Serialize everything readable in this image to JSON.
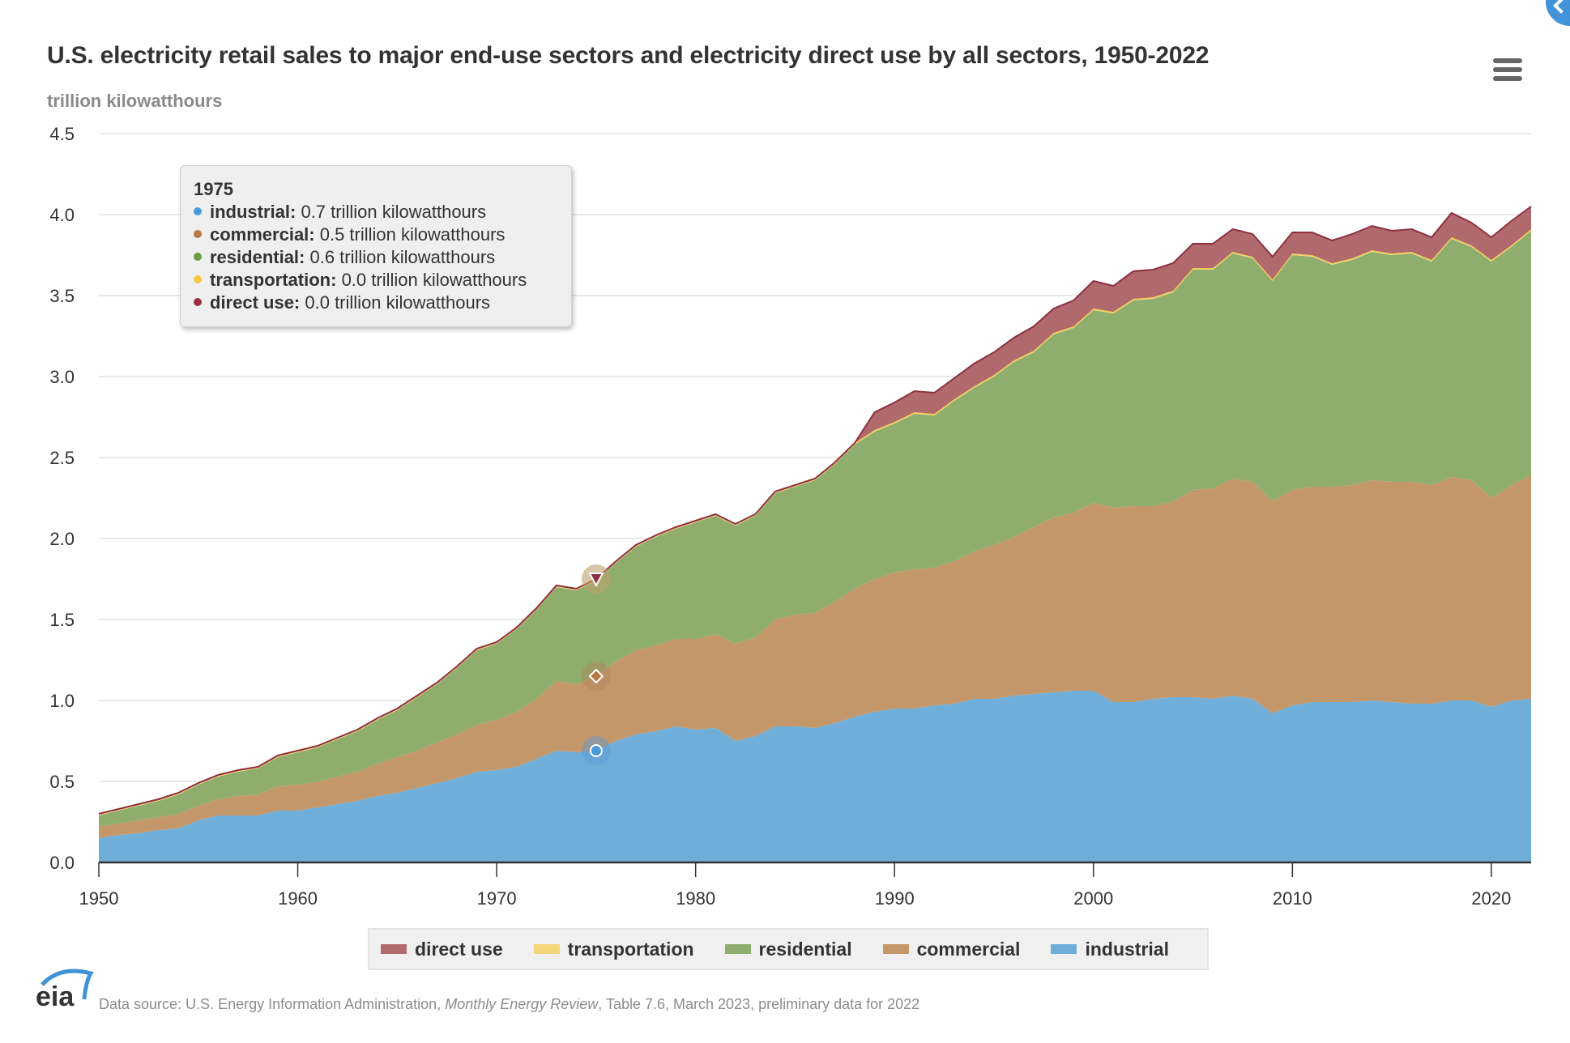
{
  "header": {
    "title": "U.S. electricity retail sales to major end-use sectors and electricity direct use by all sectors, 1950-2022",
    "subtitle": "trillion kilowatthours",
    "menu_icon": "hamburger-menu-icon",
    "corner_icon": "chevron-left-icon"
  },
  "tooltip": {
    "year": "1975",
    "rows": [
      {
        "label": "industrial:",
        "value": "0.7 trillion kilowatthours",
        "color": "#4a9ad9"
      },
      {
        "label": "commercial:",
        "value": "0.5 trillion kilowatthours",
        "color": "#b87a44"
      },
      {
        "label": "residential:",
        "value": "0.6 trillion kilowatthours",
        "color": "#6a9a44"
      },
      {
        "label": "transportation:",
        "value": "0.0 trillion kilowatthours",
        "color": "#f4c842"
      },
      {
        "label": "direct use:",
        "value": "0.0 trillion kilowatthours",
        "color": "#9b3040"
      }
    ]
  },
  "legend": [
    {
      "label": "direct use",
      "color": "#b06a6e"
    },
    {
      "label": "transportation",
      "color": "#f5d67a"
    },
    {
      "label": "residential",
      "color": "#8fae6e"
    },
    {
      "label": "commercial",
      "color": "#c4976a"
    },
    {
      "label": "industrial",
      "color": "#6faed9"
    }
  ],
  "footer": {
    "logo_text": "eia",
    "source_prefix": "Data source: U.S. Energy Information Administration, ",
    "source_italic": "Monthly Energy Review",
    "source_suffix": ", Table 7.6, March 2023, preliminary data for 2022"
  },
  "chart_data": {
    "type": "area",
    "stacked": true,
    "title": "U.S. electricity retail sales to major end-use sectors and electricity direct use by all sectors, 1950-2022",
    "ylabel": "trillion kilowatthours",
    "xlabel": "",
    "ylim": [
      0,
      4.5
    ],
    "yticks": [
      "0.0",
      "0.5",
      "1.0",
      "1.5",
      "2.0",
      "2.5",
      "3.0",
      "3.5",
      "4.0",
      "4.5"
    ],
    "xlim": [
      1950,
      2022
    ],
    "xticks": [
      "1950",
      "1960",
      "1970",
      "1980",
      "1990",
      "2000",
      "2010",
      "2020"
    ],
    "grid": true,
    "legend_position": "bottom-center",
    "highlighted_x": 1975,
    "x": [
      1950,
      1951,
      1952,
      1953,
      1954,
      1955,
      1956,
      1957,
      1958,
      1959,
      1960,
      1961,
      1962,
      1963,
      1964,
      1965,
      1966,
      1967,
      1968,
      1969,
      1970,
      1971,
      1972,
      1973,
      1974,
      1975,
      1976,
      1977,
      1978,
      1979,
      1980,
      1981,
      1982,
      1983,
      1984,
      1985,
      1986,
      1987,
      1988,
      1989,
      1990,
      1991,
      1992,
      1993,
      1994,
      1995,
      1996,
      1997,
      1998,
      1999,
      2000,
      2001,
      2002,
      2003,
      2004,
      2005,
      2006,
      2007,
      2008,
      2009,
      2010,
      2011,
      2012,
      2013,
      2014,
      2015,
      2016,
      2017,
      2018,
      2019,
      2020,
      2021,
      2022
    ],
    "series": [
      {
        "name": "industrial",
        "color": "#6faed9",
        "values": [
          0.15,
          0.17,
          0.18,
          0.2,
          0.21,
          0.26,
          0.29,
          0.29,
          0.29,
          0.32,
          0.32,
          0.34,
          0.36,
          0.38,
          0.41,
          0.43,
          0.46,
          0.49,
          0.52,
          0.56,
          0.57,
          0.59,
          0.64,
          0.69,
          0.68,
          0.69,
          0.75,
          0.79,
          0.81,
          0.84,
          0.82,
          0.83,
          0.75,
          0.78,
          0.84,
          0.84,
          0.83,
          0.86,
          0.9,
          0.93,
          0.95,
          0.95,
          0.97,
          0.98,
          1.01,
          1.01,
          1.03,
          1.04,
          1.05,
          1.06,
          1.06,
          0.99,
          0.99,
          1.01,
          1.02,
          1.02,
          1.01,
          1.03,
          1.01,
          0.92,
          0.97,
          0.99,
          0.99,
          0.99,
          1.0,
          0.99,
          0.98,
          0.98,
          1.0,
          1.0,
          0.96,
          1.0,
          1.01
        ]
      },
      {
        "name": "commercial",
        "color": "#c4976a",
        "values": [
          0.07,
          0.07,
          0.08,
          0.08,
          0.09,
          0.09,
          0.1,
          0.12,
          0.13,
          0.15,
          0.16,
          0.16,
          0.17,
          0.18,
          0.2,
          0.22,
          0.23,
          0.25,
          0.27,
          0.29,
          0.31,
          0.34,
          0.37,
          0.43,
          0.42,
          0.46,
          0.49,
          0.52,
          0.53,
          0.54,
          0.56,
          0.58,
          0.6,
          0.61,
          0.66,
          0.69,
          0.71,
          0.75,
          0.79,
          0.82,
          0.84,
          0.86,
          0.85,
          0.88,
          0.91,
          0.95,
          0.98,
          1.03,
          1.08,
          1.1,
          1.16,
          1.2,
          1.21,
          1.19,
          1.21,
          1.28,
          1.3,
          1.34,
          1.34,
          1.31,
          1.33,
          1.33,
          1.33,
          1.34,
          1.36,
          1.36,
          1.37,
          1.35,
          1.38,
          1.36,
          1.29,
          1.33,
          1.38
        ]
      },
      {
        "name": "residential",
        "color": "#8fae6e",
        "values": [
          0.07,
          0.08,
          0.09,
          0.1,
          0.12,
          0.13,
          0.14,
          0.15,
          0.16,
          0.18,
          0.2,
          0.21,
          0.23,
          0.25,
          0.27,
          0.29,
          0.33,
          0.36,
          0.41,
          0.46,
          0.47,
          0.51,
          0.55,
          0.58,
          0.58,
          0.59,
          0.61,
          0.64,
          0.67,
          0.68,
          0.72,
          0.73,
          0.73,
          0.75,
          0.78,
          0.79,
          0.82,
          0.85,
          0.89,
          0.91,
          0.92,
          0.96,
          0.94,
          0.99,
          1.01,
          1.04,
          1.08,
          1.08,
          1.13,
          1.14,
          1.19,
          1.2,
          1.27,
          1.28,
          1.29,
          1.36,
          1.35,
          1.39,
          1.38,
          1.36,
          1.45,
          1.42,
          1.37,
          1.39,
          1.41,
          1.4,
          1.41,
          1.38,
          1.47,
          1.44,
          1.46,
          1.47,
          1.51
        ]
      },
      {
        "name": "transportation",
        "color": "#f5d67a",
        "values": [
          0.01,
          0.01,
          0.01,
          0.01,
          0.01,
          0.01,
          0.01,
          0.01,
          0.01,
          0.01,
          0.01,
          0.01,
          0.01,
          0.01,
          0.01,
          0.01,
          0.01,
          0.01,
          0.01,
          0.01,
          0.01,
          0.01,
          0.01,
          0.01,
          0.01,
          0.01,
          0.01,
          0.01,
          0.01,
          0.01,
          0.01,
          0.01,
          0.01,
          0.01,
          0.01,
          0.01,
          0.01,
          0.01,
          0.01,
          0.01,
          0.01,
          0.01,
          0.01,
          0.01,
          0.01,
          0.01,
          0.01,
          0.01,
          0.01,
          0.01,
          0.01,
          0.01,
          0.01,
          0.01,
          0.01,
          0.01,
          0.01,
          0.01,
          0.01,
          0.01,
          0.01,
          0.01,
          0.01,
          0.01,
          0.01,
          0.01,
          0.01,
          0.01,
          0.01,
          0.01,
          0.01,
          0.01,
          0.01
        ]
      },
      {
        "name": "direct use",
        "color": "#b06a6e",
        "values": [
          0,
          0,
          0,
          0,
          0,
          0,
          0,
          0,
          0,
          0,
          0,
          0,
          0,
          0,
          0,
          0,
          0,
          0,
          0,
          0,
          0,
          0,
          0,
          0,
          0,
          0,
          0,
          0,
          0,
          0,
          0,
          0,
          0,
          0,
          0,
          0,
          0,
          0,
          0,
          0.11,
          0.12,
          0.13,
          0.13,
          0.13,
          0.14,
          0.14,
          0.14,
          0.15,
          0.15,
          0.16,
          0.17,
          0.16,
          0.17,
          0.17,
          0.17,
          0.15,
          0.15,
          0.14,
          0.14,
          0.14,
          0.13,
          0.14,
          0.14,
          0.15,
          0.15,
          0.14,
          0.14,
          0.14,
          0.15,
          0.14,
          0.14,
          0.15,
          0.14
        ]
      }
    ]
  }
}
